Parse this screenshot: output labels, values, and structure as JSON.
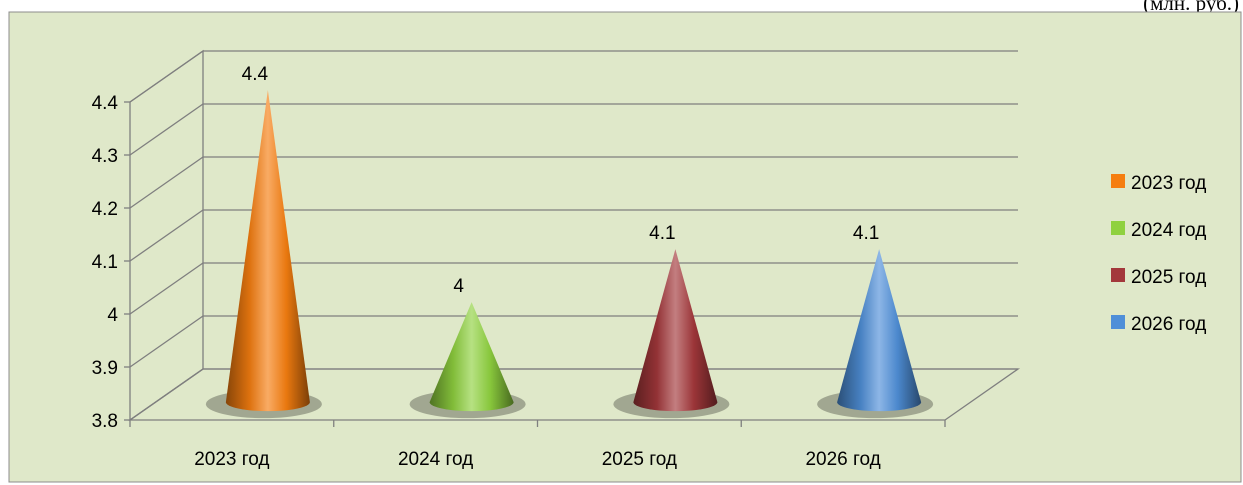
{
  "unit_caption": "(млн. руб.)",
  "chart_data": {
    "type": "bar",
    "shape": "cone-3d",
    "categories": [
      "2023 год",
      "2024 год",
      "2025 год",
      "2026 год"
    ],
    "values": [
      4.4,
      4.0,
      4.1,
      4.1
    ],
    "data_labels": [
      "4.4",
      "4",
      "4.1",
      "4.1"
    ],
    "ylim": [
      3.8,
      4.4
    ],
    "yticks": [
      3.8,
      3.9,
      4,
      4.1,
      4.2,
      4.3,
      4.4
    ],
    "ytick_labels": [
      "3.8",
      "3.9",
      "4",
      "4.1",
      "4.2",
      "4.3",
      "4.4"
    ],
    "grid": true,
    "legend_position": "right",
    "legend": [
      "2023 год",
      "2024 год",
      "2025 год",
      "2026 год"
    ],
    "colors": [
      "#f57e10",
      "#8fd13f",
      "#a3383b",
      "#4f8fd8"
    ],
    "background_color": "#dfe8c9"
  }
}
